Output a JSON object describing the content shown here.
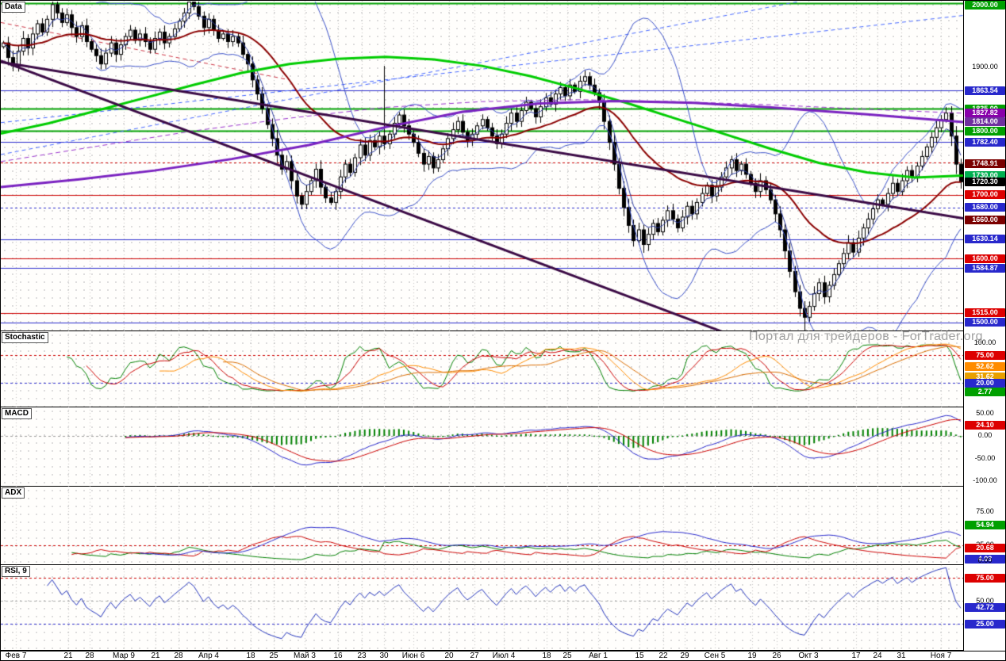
{
  "app": {
    "watermark_text": "Портал для трейдеров - ForTrader.org"
  },
  "panels": {
    "main": {
      "label": "Data"
    },
    "stochastic": {
      "label": "Stochastic"
    },
    "macd": {
      "label": "MACD"
    },
    "adx": {
      "label": "ADX"
    },
    "rsi": {
      "label": "RSI, 9"
    }
  },
  "time_axis": {
    "ticks": [
      {
        "label": "Фев 7",
        "pos": 0.016
      },
      {
        "label": "21",
        "pos": 0.07
      },
      {
        "label": "28",
        "pos": 0.092
      },
      {
        "label": "Мар 9",
        "pos": 0.128
      },
      {
        "label": "21",
        "pos": 0.161
      },
      {
        "label": "28",
        "pos": 0.185
      },
      {
        "label": "Апр 4",
        "pos": 0.216
      },
      {
        "label": "18",
        "pos": 0.26
      },
      {
        "label": "25",
        "pos": 0.284
      },
      {
        "label": "Май 3",
        "pos": 0.316
      },
      {
        "label": "16",
        "pos": 0.35
      },
      {
        "label": "23",
        "pos": 0.375
      },
      {
        "label": "30",
        "pos": 0.398
      },
      {
        "label": "Июн 6",
        "pos": 0.429
      },
      {
        "label": "20",
        "pos": 0.466
      },
      {
        "label": "27",
        "pos": 0.492
      },
      {
        "label": "Июл 4",
        "pos": 0.523
      },
      {
        "label": "18",
        "pos": 0.567
      },
      {
        "label": "25",
        "pos": 0.589
      },
      {
        "label": "Авг 1",
        "pos": 0.621
      },
      {
        "label": "15",
        "pos": 0.664
      },
      {
        "label": "22",
        "pos": 0.688
      },
      {
        "label": "29",
        "pos": 0.711
      },
      {
        "label": "Сен 5",
        "pos": 0.742
      },
      {
        "label": "19",
        "pos": 0.781
      },
      {
        "label": "26",
        "pos": 0.806
      },
      {
        "label": "Окт 3",
        "pos": 0.839
      },
      {
        "label": "17",
        "pos": 0.889
      },
      {
        "label": "24",
        "pos": 0.911
      },
      {
        "label": "31",
        "pos": 0.936
      },
      {
        "label": "Ноя 7",
        "pos": 0.977
      }
    ]
  },
  "chart_data": [
    {
      "id": "price",
      "type": "candlestick",
      "title": "Data",
      "ylim": [
        1486,
        2004
      ],
      "last_price": 1720.3,
      "closes": [
        1938,
        1915,
        1902,
        1925,
        1945,
        1930,
        1952,
        1968,
        1955,
        1975,
        1998,
        1985,
        1970,
        1982,
        1962,
        1948,
        1965,
        1940,
        1928,
        1918,
        1905,
        1922,
        1938,
        1920,
        1935,
        1948,
        1958,
        1942,
        1952,
        1940,
        1928,
        1945,
        1955,
        1938,
        1948,
        1960,
        1972,
        1985,
        2002,
        1995,
        1980,
        1962,
        1975,
        1958,
        1945,
        1952,
        1940,
        1948,
        1938,
        1920,
        1905,
        1880,
        1858,
        1835,
        1810,
        1788,
        1762,
        1740,
        1752,
        1722,
        1698,
        1685,
        1705,
        1722,
        1740,
        1712,
        1695,
        1688,
        1705,
        1728,
        1748,
        1735,
        1758,
        1778,
        1762,
        1785,
        1775,
        1792,
        1780,
        1795,
        1812,
        1825,
        1808,
        1795,
        1782,
        1765,
        1748,
        1760,
        1742,
        1755,
        1772,
        1788,
        1802,
        1815,
        1798,
        1785,
        1795,
        1808,
        1818,
        1805,
        1792,
        1780,
        1795,
        1812,
        1828,
        1815,
        1832,
        1845,
        1835,
        1822,
        1838,
        1852,
        1842,
        1858,
        1868,
        1855,
        1872,
        1862,
        1878,
        1885,
        1872,
        1860,
        1845,
        1815,
        1782,
        1748,
        1710,
        1680,
        1652,
        1628,
        1645,
        1622,
        1638,
        1655,
        1642,
        1660,
        1675,
        1662,
        1648,
        1665,
        1682,
        1670,
        1688,
        1702,
        1715,
        1698,
        1712,
        1728,
        1742,
        1755,
        1738,
        1748,
        1732,
        1718,
        1705,
        1722,
        1708,
        1692,
        1670,
        1645,
        1612,
        1580,
        1548,
        1522,
        1508,
        1525,
        1545,
        1562,
        1540,
        1558,
        1575,
        1592,
        1608,
        1625,
        1610,
        1632,
        1648,
        1662,
        1678,
        1692,
        1685,
        1702,
        1718,
        1705,
        1722,
        1738,
        1728,
        1745,
        1760,
        1775,
        1790,
        1805,
        1818,
        1828,
        1792,
        1748,
        1720.3
      ],
      "wick_overrides": [
        {
          "index": 78,
          "high": 1902
        },
        {
          "index": 164,
          "low": 1487
        }
      ],
      "levels": [
        {
          "value": 2000,
          "color": "#00a000",
          "style": "solid",
          "width": 2
        },
        {
          "value": 1863.54,
          "color": "#2828cc",
          "style": "solid",
          "width": 1
        },
        {
          "value": 1835,
          "color": "#00a000",
          "style": "solid",
          "width": 2
        },
        {
          "value": 1800,
          "color": "#00a000",
          "style": "solid",
          "width": 2
        },
        {
          "value": 1782.4,
          "color": "#2828cc",
          "style": "solid",
          "width": 1
        },
        {
          "value": 1750,
          "color": "#cc0000",
          "style": "dashed",
          "width": 1
        },
        {
          "value": 1700,
          "color": "#cc0000",
          "style": "solid",
          "width": 1
        },
        {
          "value": 1680,
          "color": "#2828cc",
          "style": "dashed",
          "width": 1
        },
        {
          "value": 1630.14,
          "color": "#2828cc",
          "style": "solid",
          "width": 1
        },
        {
          "value": 1600,
          "color": "#cc0000",
          "style": "solid",
          "width": 1
        },
        {
          "value": 1584.87,
          "color": "#2828cc",
          "style": "solid",
          "width": 1
        },
        {
          "value": 1515,
          "color": "#cc0000",
          "style": "solid",
          "width": 1
        },
        {
          "value": 1500,
          "color": "#2828cc",
          "style": "solid",
          "width": 1
        }
      ],
      "trendlines": [
        {
          "x1": 0,
          "p1": 1910,
          "x2": 0.752,
          "p2": 1484,
          "color": "#3b0a45",
          "width": 3,
          "style": "solid"
        },
        {
          "x1": 0,
          "p1": 1908,
          "x2": 1,
          "p2": 1663,
          "color": "#3b0a45",
          "width": 3,
          "style": "solid"
        },
        {
          "x1": 0,
          "p1": 1763,
          "x2": 0.833,
          "p2": 2004,
          "color": "#4466ff",
          "width": 1,
          "style": "dashed"
        },
        {
          "x1": 0,
          "p1": 1813,
          "x2": 1,
          "p2": 1981,
          "color": "#4466ff",
          "width": 1,
          "style": "dashed"
        },
        {
          "x1": 0,
          "p1": 1970,
          "x2": 0.3,
          "p2": 1880,
          "color": "#cc3344",
          "width": 1,
          "style": "dashed"
        }
      ],
      "overlays_anchored": [
        {
          "name": "ma-green",
          "color": "#00cc00",
          "width": 3,
          "style": "solid",
          "points": [
            [
              0,
              1796
            ],
            [
              0.05,
              1812
            ],
            [
              0.1,
              1832
            ],
            [
              0.15,
              1852
            ],
            [
              0.2,
              1872
            ],
            [
              0.25,
              1891
            ],
            [
              0.3,
              1905
            ],
            [
              0.35,
              1913
            ],
            [
              0.4,
              1916
            ],
            [
              0.45,
              1912
            ],
            [
              0.5,
              1902
            ],
            [
              0.55,
              1886
            ],
            [
              0.6,
              1866
            ],
            [
              0.65,
              1844
            ],
            [
              0.7,
              1820
            ],
            [
              0.75,
              1796
            ],
            [
              0.8,
              1772
            ],
            [
              0.85,
              1750
            ],
            [
              0.9,
              1735
            ],
            [
              0.95,
              1727
            ],
            [
              1,
              1730
            ]
          ]
        },
        {
          "name": "ma-purple-dashed",
          "color": "#9933cc",
          "width": 1,
          "style": "dashed",
          "points": [
            [
              0,
              1752
            ],
            [
              0.1,
              1776
            ],
            [
              0.2,
              1800
            ],
            [
              0.3,
              1820
            ],
            [
              0.4,
              1837
            ],
            [
              0.5,
              1846
            ],
            [
              0.6,
              1849
            ],
            [
              0.7,
              1846
            ],
            [
              0.8,
              1841
            ],
            [
              0.9,
              1834
            ],
            [
              1,
              1827.8
            ]
          ]
        },
        {
          "name": "ma-purple",
          "color": "#7a22c0",
          "width": 3,
          "style": "solid",
          "points": [
            [
              0,
              1712
            ],
            [
              0.08,
              1724
            ],
            [
              0.16,
              1738
            ],
            [
              0.24,
              1756
            ],
            [
              0.32,
              1778
            ],
            [
              0.4,
              1806
            ],
            [
              0.48,
              1830
            ],
            [
              0.56,
              1843
            ],
            [
              0.64,
              1847
            ],
            [
              0.72,
              1844
            ],
            [
              0.8,
              1837
            ],
            [
              0.9,
              1826
            ],
            [
              1,
              1814
            ]
          ]
        }
      ],
      "overlays_computed": [
        {
          "name": "bollinger",
          "type": "bollinger",
          "period": 20,
          "dev": 2,
          "color": "#3a50c8",
          "width": 1
        },
        {
          "name": "ema-fast",
          "type": "ema",
          "period": 5,
          "color": "#2a3aa0",
          "width": 1
        },
        {
          "name": "ema-slow",
          "type": "ema",
          "period": 30,
          "color": "#8b0000",
          "width": 2
        }
      ],
      "axis_labels": [
        {
          "text": "2000.00",
          "value": 2000,
          "bg": "#00a000"
        },
        {
          "text": "1900.00",
          "value": 1900,
          "bg": null
        },
        {
          "text": "1863.54",
          "value": 1863.54,
          "bg": "#2828cc"
        },
        {
          "text": "1835.00",
          "value": 1835,
          "bg": "#00a000"
        },
        {
          "text": "1827.82",
          "value": 1827.82,
          "bg": "#8800aa"
        },
        {
          "text": "1814.00",
          "value": 1814,
          "bg": "#7030a0"
        },
        {
          "text": "1800.00",
          "value": 1800,
          "bg": "#00a000"
        },
        {
          "text": "1782.40",
          "value": 1782.4,
          "bg": "#2828cc"
        },
        {
          "text": "1748.91",
          "value": 1748.91,
          "bg": "#7b0000"
        },
        {
          "text": "1730.00",
          "value": 1730,
          "bg": "#00b050"
        },
        {
          "text": "1720.30",
          "value": 1720.3,
          "bg": "#000000"
        },
        {
          "text": "1700.00",
          "value": 1700,
          "bg": "#dd0000"
        },
        {
          "text": "1680.00",
          "value": 1680,
          "bg": "#2828cc"
        },
        {
          "text": "1660.00",
          "value": 1660,
          "bg": "#7b0000"
        },
        {
          "text": "1630.14",
          "value": 1630.14,
          "bg": "#2828cc"
        },
        {
          "text": "1600.00",
          "value": 1600,
          "bg": "#dd0000"
        },
        {
          "text": "1584.87",
          "value": 1584.87,
          "bg": "#2828cc"
        },
        {
          "text": "1515.00",
          "value": 1515,
          "bg": "#dd0000"
        },
        {
          "text": "1500.00",
          "value": 1500,
          "bg": "#2828cc"
        }
      ]
    },
    {
      "id": "stochastic",
      "type": "line",
      "title": "Stochastic",
      "ylim": [
        -28,
        122
      ],
      "levels": [
        {
          "value": 75,
          "color": "#cc0000",
          "style": "dashed",
          "width": 1
        },
        {
          "value": 20,
          "color": "#2828cc",
          "style": "dashed",
          "width": 1
        }
      ],
      "lines": [
        {
          "period": 13,
          "smooth": 2,
          "color": "#008000",
          "width": 1
        },
        {
          "period": 13,
          "smooth": 6,
          "color": "#cc0000",
          "width": 1
        },
        {
          "period": 25,
          "smooth": 9,
          "color": "#ff8c00",
          "width": 1
        },
        {
          "period": 34,
          "smooth": 13,
          "color": "#d96d00",
          "width": 1
        }
      ],
      "axis_labels": [
        {
          "text": "100.00",
          "value": 100,
          "bg": null
        },
        {
          "text": "75.00",
          "value": 75,
          "bg": "#dd0000"
        },
        {
          "text": "52.62",
          "value": 52.62,
          "bg": "#ff8c00"
        },
        {
          "text": "31.62",
          "value": 31.62,
          "bg": "#e8a000"
        },
        {
          "text": "20.00",
          "value": 20,
          "bg": "#2828cc"
        },
        {
          "text": "2.77",
          "value": 2.77,
          "bg": "#00a000"
        }
      ]
    },
    {
      "id": "macd",
      "type": "line",
      "title": "MACD",
      "ylim": [
        -114,
        64
      ],
      "params": {
        "fast": 12,
        "slow": 26,
        "signal": 9
      },
      "colors": {
        "macd": "#2828cc",
        "signal": "#cc0000",
        "hist": "#008000"
      },
      "levels": [
        {
          "value": 0,
          "color": "#999999",
          "style": "dashed",
          "width": 1
        }
      ],
      "axis_labels": [
        {
          "text": "50.00",
          "value": 50,
          "bg": null
        },
        {
          "text": "24.10",
          "value": 24.1,
          "bg": "#dd0000"
        },
        {
          "text": "0.00",
          "value": 0,
          "bg": null
        },
        {
          "text": "-50.00",
          "value": -50,
          "bg": null
        },
        {
          "text": "-100.00",
          "value": -100,
          "bg": null
        }
      ]
    },
    {
      "id": "adx",
      "type": "line",
      "title": "ADX",
      "ylim": [
        -5,
        113
      ],
      "params": {
        "period": 14
      },
      "colors": {
        "plus_di": "#008000",
        "minus_di": "#cc0000",
        "adx": "#2828cc"
      },
      "levels": [
        {
          "value": 25,
          "color": "#cc0000",
          "style": "dashed",
          "width": 1
        }
      ],
      "axis_labels": [
        {
          "text": "75.00",
          "value": 75,
          "bg": null
        },
        {
          "text": "54.94",
          "value": 54.94,
          "bg": "#00a000"
        },
        {
          "text": "25.00",
          "value": 25,
          "bg": null
        },
        {
          "text": "20.68",
          "value": 20.68,
          "bg": "#dd0000"
        },
        {
          "text": "4.03",
          "value": 4.03,
          "bg": "#2828cc"
        },
        {
          "text": "0.00",
          "value": 0,
          "bg": null
        }
      ]
    },
    {
      "id": "rsi",
      "type": "line",
      "title": "RSI, 9",
      "ylim": [
        -4,
        89
      ],
      "params": {
        "period": 9
      },
      "colors": {
        "line": "#2233bb"
      },
      "levels": [
        {
          "value": 75,
          "color": "#cc0000",
          "style": "dashed",
          "width": 1
        },
        {
          "value": 50,
          "color": "#aaaaaa",
          "style": "dashed",
          "width": 1
        },
        {
          "value": 25,
          "color": "#2828cc",
          "style": "dashed",
          "width": 1
        }
      ],
      "axis_labels": [
        {
          "text": "75.00",
          "value": 75,
          "bg": "#dd0000"
        },
        {
          "text": "50.00",
          "value": 50,
          "bg": null
        },
        {
          "text": "42.72",
          "value": 42.72,
          "bg": "#2828cc"
        },
        {
          "text": "25.00",
          "value": 25,
          "bg": "#2828cc"
        }
      ]
    }
  ]
}
